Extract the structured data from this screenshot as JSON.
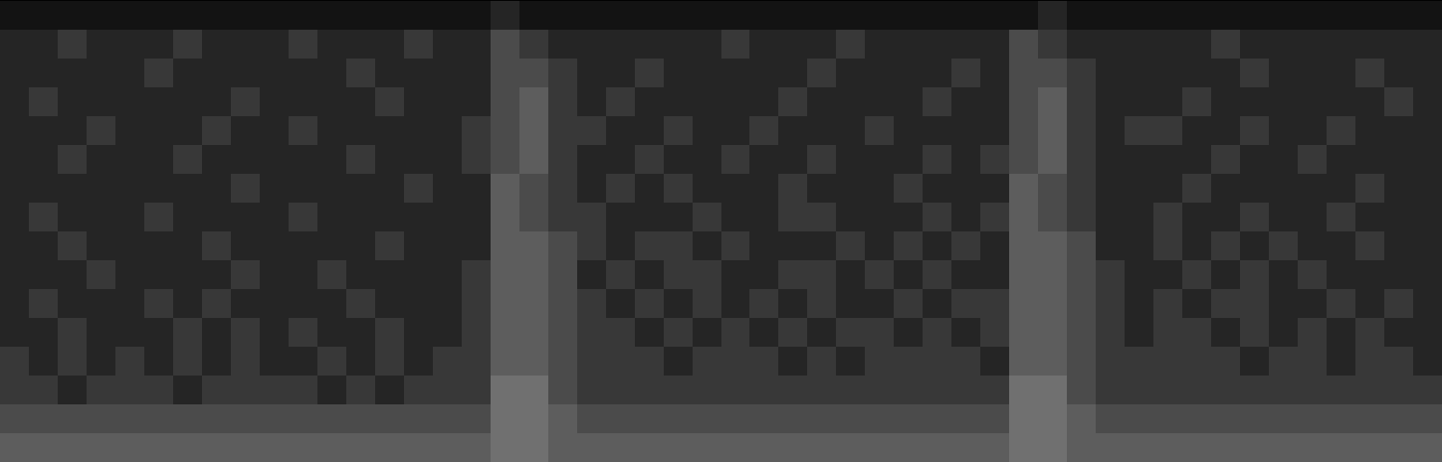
{
  "chart_data": {
    "type": "heatmap",
    "tick_labels": false,
    "zlim": [
      0,
      9
    ],
    "cells": [
      [
        1,
        1,
        1,
        1,
        1,
        1,
        1,
        1,
        1,
        1,
        1,
        1,
        1,
        1,
        1,
        1,
        1,
        2,
        1,
        1,
        1,
        1,
        1,
        1,
        1,
        1,
        1,
        1,
        1,
        1,
        1,
        1,
        1,
        1,
        1,
        1,
        2,
        1,
        1,
        1,
        1,
        1,
        1,
        1,
        1,
        1,
        1,
        1,
        1,
        1
      ],
      [
        2,
        2,
        3,
        2,
        2,
        2,
        3,
        2,
        2,
        2,
        3,
        2,
        2,
        2,
        3,
        2,
        2,
        4,
        3,
        2,
        2,
        2,
        2,
        2,
        2,
        3,
        2,
        2,
        2,
        3,
        2,
        2,
        2,
        2,
        2,
        4,
        3,
        2,
        2,
        2,
        2,
        2,
        3,
        2,
        2,
        2,
        2,
        2,
        2,
        2
      ],
      [
        2,
        2,
        2,
        2,
        2,
        3,
        2,
        2,
        2,
        2,
        2,
        2,
        3,
        2,
        2,
        2,
        2,
        4,
        4,
        3,
        2,
        2,
        3,
        2,
        2,
        2,
        2,
        2,
        3,
        2,
        2,
        2,
        2,
        3,
        2,
        4,
        4,
        3,
        2,
        2,
        2,
        2,
        2,
        3,
        2,
        2,
        2,
        3,
        2,
        2
      ],
      [
        2,
        3,
        2,
        2,
        2,
        2,
        2,
        2,
        3,
        2,
        2,
        2,
        2,
        3,
        2,
        2,
        2,
        4,
        5,
        3,
        2,
        3,
        2,
        2,
        2,
        2,
        2,
        3,
        2,
        2,
        2,
        2,
        3,
        2,
        2,
        4,
        5,
        3,
        2,
        2,
        2,
        3,
        2,
        2,
        2,
        2,
        2,
        2,
        3,
        2
      ],
      [
        2,
        2,
        2,
        3,
        2,
        2,
        2,
        3,
        2,
        2,
        3,
        2,
        2,
        2,
        2,
        2,
        3,
        4,
        5,
        3,
        3,
        2,
        2,
        3,
        2,
        2,
        3,
        2,
        2,
        2,
        3,
        2,
        2,
        2,
        2,
        4,
        5,
        3,
        2,
        3,
        3,
        2,
        2,
        3,
        2,
        2,
        3,
        2,
        2,
        2
      ],
      [
        2,
        2,
        3,
        2,
        2,
        2,
        3,
        2,
        2,
        2,
        2,
        2,
        3,
        2,
        2,
        2,
        3,
        4,
        5,
        3,
        2,
        2,
        3,
        2,
        2,
        3,
        2,
        2,
        3,
        2,
        2,
        2,
        3,
        2,
        3,
        4,
        5,
        3,
        2,
        2,
        2,
        2,
        3,
        2,
        2,
        3,
        2,
        2,
        2,
        2
      ],
      [
        2,
        2,
        2,
        2,
        2,
        2,
        2,
        2,
        3,
        2,
        2,
        2,
        2,
        2,
        3,
        2,
        2,
        5,
        4,
        3,
        2,
        3,
        2,
        3,
        2,
        2,
        2,
        3,
        2,
        2,
        2,
        3,
        2,
        2,
        2,
        5,
        4,
        3,
        2,
        2,
        2,
        3,
        2,
        2,
        2,
        2,
        2,
        3,
        2,
        2
      ],
      [
        2,
        3,
        2,
        2,
        2,
        3,
        2,
        2,
        2,
        2,
        3,
        2,
        2,
        2,
        2,
        2,
        2,
        5,
        4,
        3,
        3,
        2,
        2,
        2,
        3,
        2,
        2,
        3,
        3,
        2,
        2,
        2,
        3,
        2,
        3,
        5,
        4,
        3,
        2,
        2,
        3,
        2,
        2,
        3,
        2,
        2,
        3,
        2,
        2,
        2
      ],
      [
        2,
        2,
        3,
        2,
        2,
        2,
        2,
        3,
        2,
        2,
        2,
        2,
        2,
        3,
        2,
        2,
        2,
        5,
        5,
        4,
        3,
        2,
        3,
        3,
        2,
        3,
        2,
        2,
        2,
        3,
        2,
        3,
        2,
        3,
        2,
        5,
        5,
        4,
        2,
        2,
        3,
        2,
        3,
        2,
        3,
        2,
        2,
        3,
        2,
        2
      ],
      [
        2,
        2,
        2,
        3,
        2,
        2,
        2,
        2,
        3,
        2,
        2,
        3,
        2,
        2,
        2,
        2,
        3,
        5,
        5,
        4,
        2,
        3,
        2,
        3,
        3,
        2,
        2,
        3,
        3,
        2,
        3,
        2,
        3,
        2,
        2,
        5,
        5,
        4,
        3,
        2,
        2,
        3,
        2,
        3,
        2,
        3,
        2,
        2,
        2,
        2
      ],
      [
        2,
        3,
        2,
        2,
        2,
        3,
        2,
        3,
        2,
        2,
        2,
        2,
        3,
        2,
        2,
        2,
        3,
        5,
        5,
        4,
        3,
        2,
        3,
        2,
        3,
        2,
        3,
        2,
        3,
        2,
        2,
        3,
        2,
        3,
        3,
        5,
        5,
        4,
        3,
        2,
        3,
        2,
        3,
        3,
        2,
        2,
        3,
        2,
        3,
        2
      ],
      [
        2,
        2,
        3,
        2,
        2,
        2,
        3,
        2,
        3,
        2,
        3,
        2,
        2,
        3,
        2,
        2,
        3,
        5,
        5,
        4,
        3,
        3,
        2,
        3,
        2,
        3,
        2,
        3,
        2,
        3,
        3,
        2,
        3,
        2,
        3,
        5,
        5,
        4,
        3,
        2,
        3,
        3,
        2,
        3,
        2,
        3,
        2,
        3,
        2,
        2
      ],
      [
        3,
        2,
        3,
        2,
        3,
        2,
        3,
        2,
        3,
        2,
        2,
        3,
        2,
        3,
        2,
        3,
        3,
        5,
        5,
        4,
        3,
        3,
        3,
        2,
        3,
        3,
        3,
        2,
        3,
        2,
        3,
        3,
        3,
        3,
        2,
        5,
        5,
        4,
        3,
        3,
        3,
        3,
        3,
        2,
        3,
        3,
        2,
        3,
        3,
        2
      ],
      [
        3,
        3,
        2,
        3,
        3,
        3,
        2,
        3,
        3,
        3,
        3,
        2,
        3,
        2,
        3,
        3,
        3,
        6,
        6,
        4,
        3,
        3,
        3,
        3,
        3,
        3,
        3,
        3,
        3,
        3,
        3,
        3,
        3,
        3,
        3,
        6,
        6,
        4,
        3,
        3,
        3,
        3,
        3,
        3,
        3,
        3,
        3,
        3,
        3,
        3
      ],
      [
        4,
        4,
        4,
        4,
        4,
        4,
        4,
        4,
        4,
        4,
        4,
        4,
        4,
        4,
        4,
        4,
        4,
        6,
        6,
        5,
        4,
        4,
        4,
        4,
        4,
        4,
        4,
        4,
        4,
        4,
        4,
        4,
        4,
        4,
        4,
        6,
        6,
        5,
        4,
        4,
        4,
        4,
        4,
        4,
        4,
        4,
        4,
        4,
        4,
        4
      ],
      [
        5,
        5,
        5,
        5,
        5,
        5,
        5,
        5,
        5,
        5,
        5,
        5,
        5,
        5,
        5,
        5,
        5,
        6,
        6,
        5,
        5,
        5,
        5,
        5,
        5,
        5,
        5,
        5,
        5,
        5,
        5,
        5,
        5,
        5,
        5,
        6,
        6,
        5,
        5,
        5,
        5,
        5,
        5,
        5,
        5,
        5,
        5,
        5,
        5,
        5
      ]
    ]
  }
}
